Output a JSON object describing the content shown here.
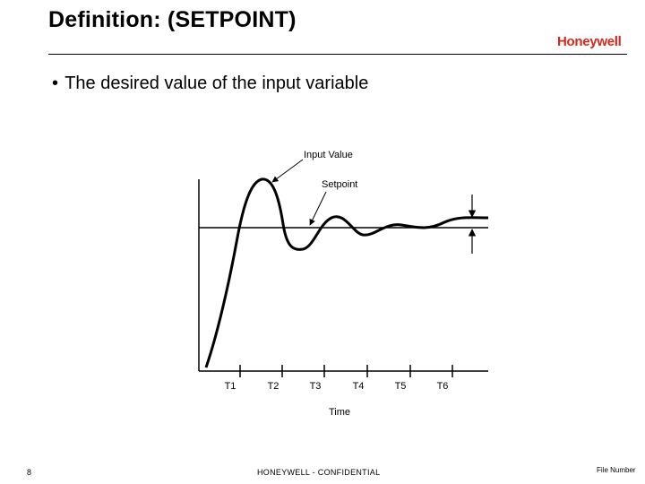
{
  "slide": {
    "title": "Definition: (SETPOINT)",
    "brand": "Honeywell",
    "brand_color": "#d9261c",
    "bullet_marker": "•",
    "bullet_text": "The desired value of the input variable"
  },
  "diagram": {
    "labels": {
      "input_value": "Input Value",
      "setpoint": "Setpoint",
      "x_axis": "Time"
    },
    "ticks": [
      "T1",
      "T2",
      "T3",
      "T4",
      "T5",
      "T6"
    ]
  },
  "footer": {
    "page_number": "8",
    "confidential": "HONEYWELL - CONFIDENTIAL",
    "file_number": "File Number"
  }
}
